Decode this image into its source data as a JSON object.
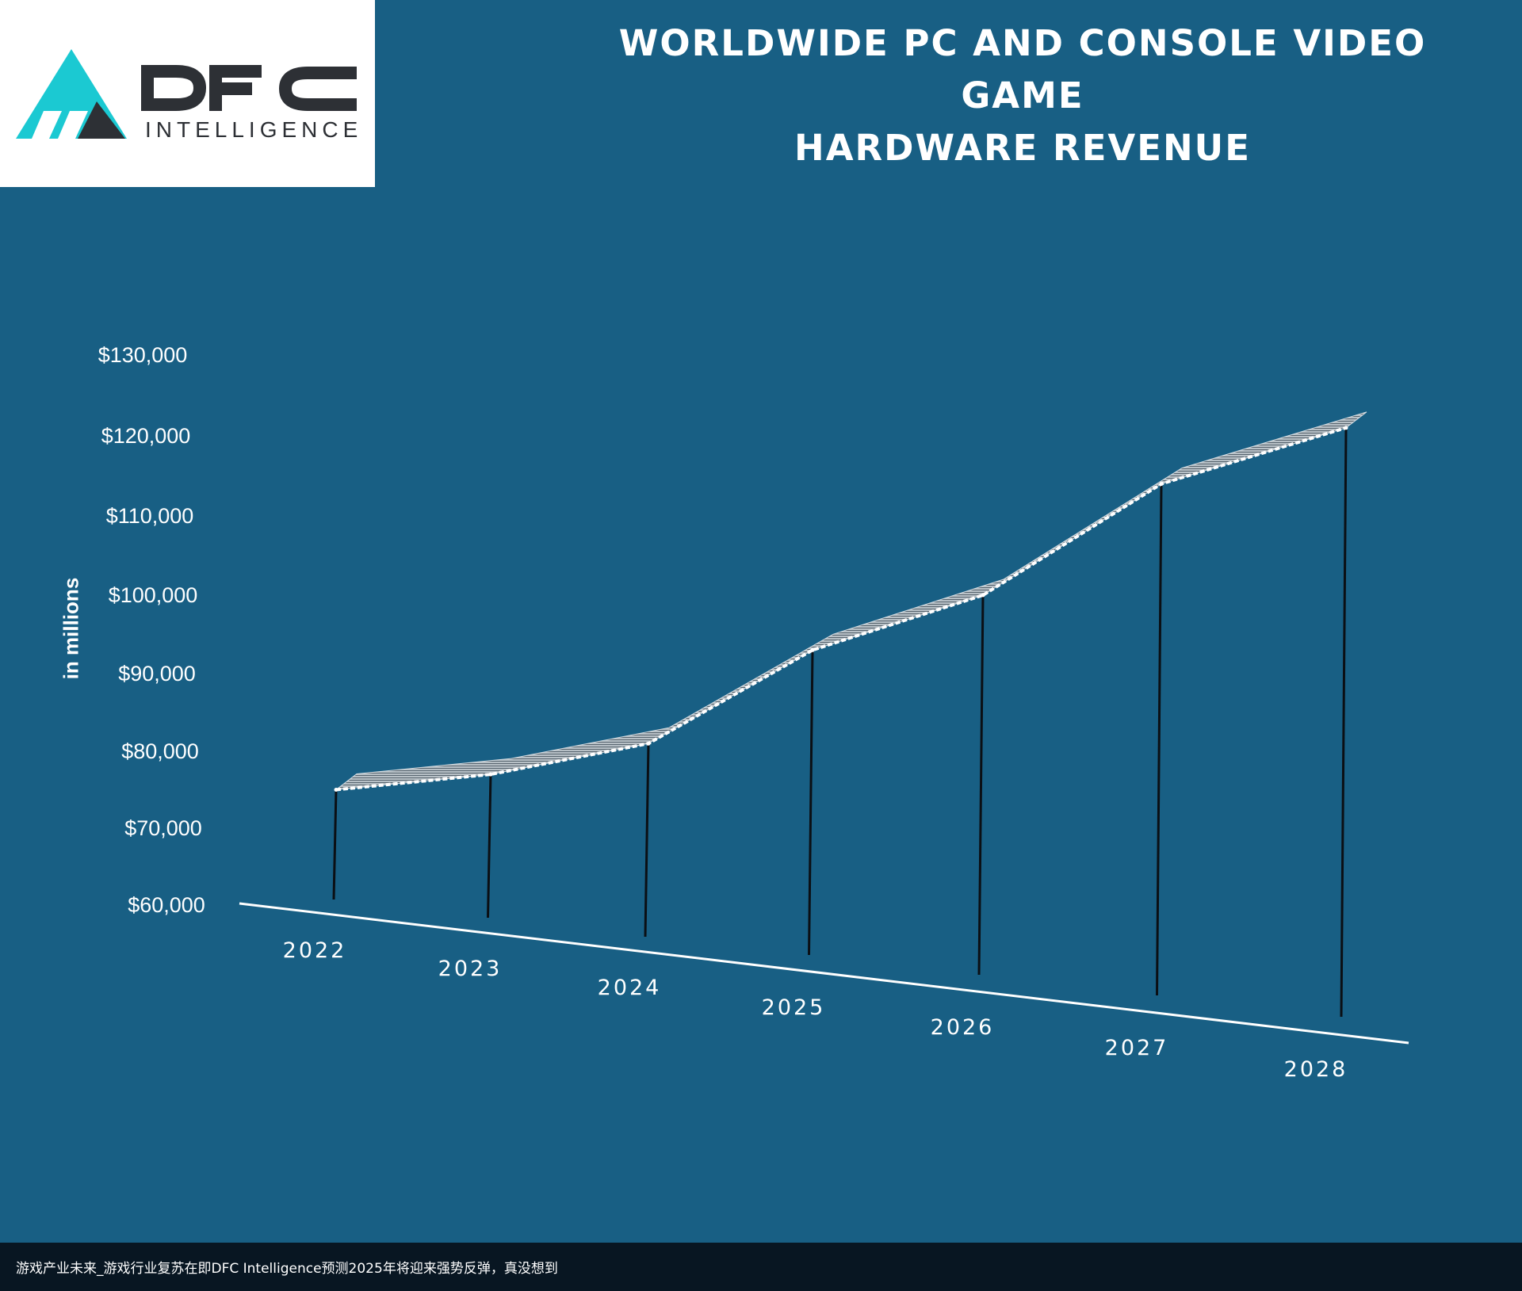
{
  "logo": {
    "name": "DFC",
    "tagline": "INTELLIGENCE"
  },
  "title": {
    "line1": "WORLDWIDE PC AND CONSOLE VIDEO GAME",
    "line2": "HARDWARE REVENUE"
  },
  "colors": {
    "background": "#185f84",
    "accent": "#1bc9d2",
    "logo_dark": "#2d3035",
    "footer": "#081622"
  },
  "chart_data": {
    "type": "line",
    "title": "WORLDWIDE PC AND CONSOLE VIDEO GAME HARDWARE REVENUE",
    "ylabel": "in millions",
    "xlabel": "",
    "ylim": [
      60000,
      130000
    ],
    "yticks": [
      "$130,000",
      "$120,000",
      "$110,000",
      "$100,000",
      "$90,000",
      "$80,000",
      "$70,000",
      "$60,000"
    ],
    "x": [
      "2022",
      "2023",
      "2024",
      "2025",
      "2026",
      "2027",
      "2028"
    ],
    "values": [
      75000,
      77000,
      81000,
      93000,
      100000,
      114000,
      121000
    ],
    "grid": false,
    "legend": "none",
    "style": "3d-ribbon"
  },
  "footer": {
    "caption": "游戏产业未来_游戏行业复苏在即DFC Intelligence预测2025年将迎来强势反弹，真没想到"
  }
}
